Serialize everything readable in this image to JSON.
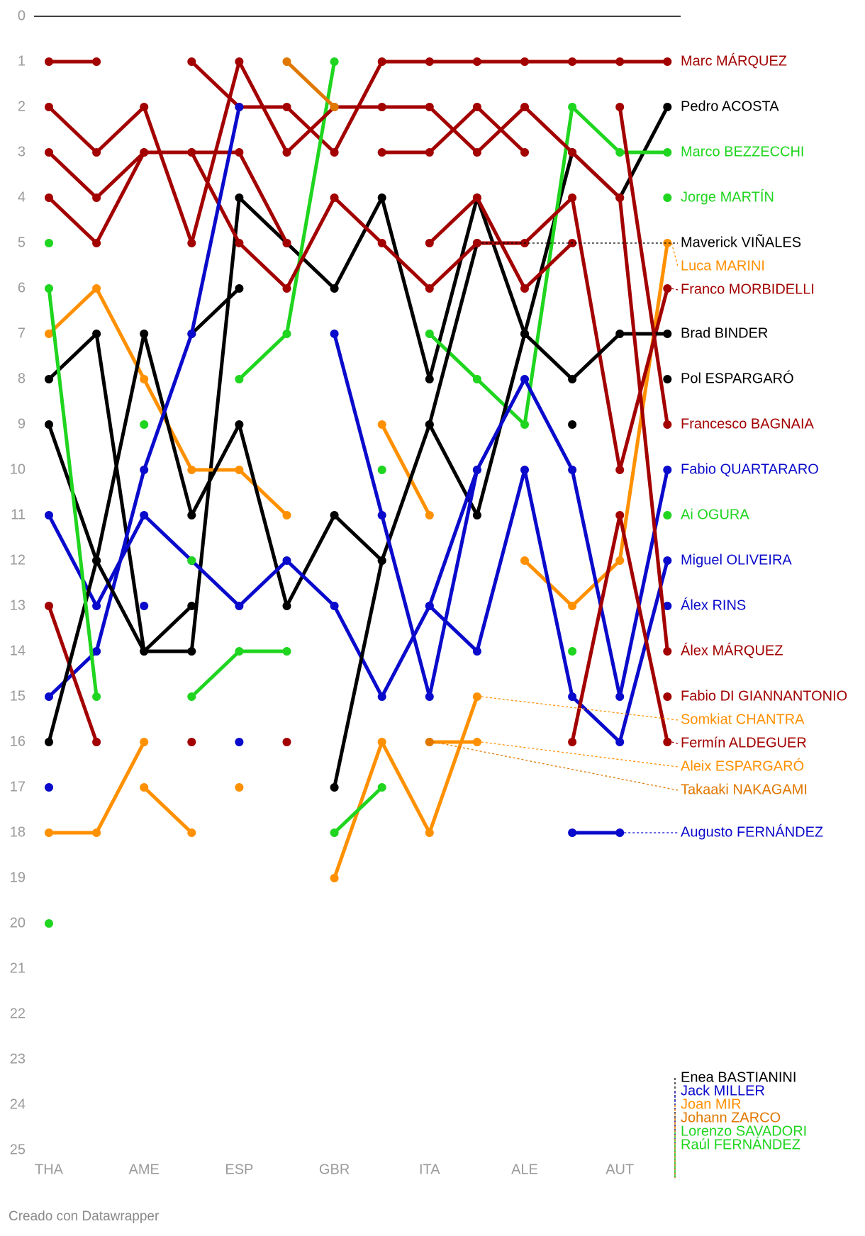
{
  "chart_data": {
    "type": "line",
    "categories": [
      "THA",
      null,
      "AME",
      null,
      "ESP",
      null,
      "GBR",
      null,
      "ITA",
      null,
      "ALE",
      null,
      "AUT",
      null
    ],
    "ylim": [
      0,
      25
    ],
    "yticks": [
      0,
      1,
      2,
      3,
      4,
      5,
      6,
      7,
      8,
      9,
      10,
      11,
      12,
      13,
      14,
      15,
      16,
      17,
      18,
      19,
      20,
      21,
      22,
      23,
      24,
      25
    ],
    "y_inverted": true,
    "footer": "Creado con Datawrapper",
    "series": [
      {
        "name": "Marc MÁRQUEZ",
        "color": "#a30000",
        "values": [
          1,
          1,
          null,
          1,
          2,
          2,
          3,
          1,
          1,
          1,
          1,
          1,
          1,
          1
        ]
      },
      {
        "name": "Pedro ACOSTA",
        "color": "#000000",
        "values": [
          8,
          7,
          14,
          14,
          4,
          5,
          6,
          4,
          8,
          4,
          7,
          3,
          4,
          2
        ]
      },
      {
        "name": "Marco BEZZECCHI",
        "color": "#1fd51f",
        "values": [
          null,
          null,
          9,
          null,
          8,
          7,
          1,
          null,
          7,
          8,
          9,
          2,
          3,
          3
        ]
      },
      {
        "name": "Jorge MARTÍN",
        "color": "#1fd51f",
        "values": [
          null,
          null,
          null,
          null,
          null,
          null,
          null,
          null,
          null,
          null,
          null,
          14,
          null,
          4
        ]
      },
      {
        "name": "Maverick VIÑALES",
        "color": "#000000",
        "values": [
          null,
          null,
          null,
          7,
          6,
          null,
          null,
          null,
          9,
          5,
          null,
          null,
          null,
          null
        ]
      },
      {
        "name": "Luca MARINI",
        "color": "#ff9000",
        "values": [
          7,
          6,
          8,
          10,
          10,
          11,
          null,
          9,
          11,
          null,
          12,
          13,
          12,
          5
        ]
      },
      {
        "name": "Franco MORBIDELLI",
        "color": "#a30000",
        "values": [
          4,
          5,
          3,
          3,
          5,
          6,
          4,
          5,
          6,
          5,
          5,
          4,
          10,
          6
        ]
      },
      {
        "name": "Brad BINDER",
        "color": "#000000",
        "values": [
          9,
          12,
          7,
          11,
          9,
          13,
          11,
          12,
          9,
          11,
          7,
          8,
          7,
          7
        ]
      },
      {
        "name": "Pol ESPARGARÓ",
        "color": "#000000",
        "values": [
          null,
          null,
          null,
          null,
          null,
          null,
          null,
          null,
          null,
          null,
          null,
          9,
          null,
          8
        ]
      },
      {
        "name": "Francesco BAGNAIA",
        "color": "#a30000",
        "values": [
          3,
          4,
          3,
          3,
          3,
          5,
          null,
          3,
          3,
          2,
          3,
          null,
          2,
          9
        ]
      },
      {
        "name": "Fabio QUARTARARO",
        "color": "#0a0acc",
        "values": [
          15,
          14,
          10,
          7,
          2,
          null,
          7,
          11,
          15,
          10,
          8,
          10,
          15,
          10
        ]
      },
      {
        "name": "Ai OGURA",
        "color": "#1fd51f",
        "values": [
          5,
          null,
          null,
          15,
          14,
          14,
          null,
          10,
          null,
          null,
          null,
          null,
          null,
          11
        ]
      },
      {
        "name": "Miguel OLIVEIRA",
        "color": "#0a0acc",
        "values": [
          null,
          null,
          null,
          null,
          null,
          null,
          null,
          null,
          13,
          14,
          10,
          15,
          16,
          12
        ]
      },
      {
        "name": "Álex RINS",
        "color": "#0a0acc",
        "values": [
          11,
          13,
          11,
          12,
          13,
          12,
          13,
          15,
          13,
          10,
          null,
          null,
          null,
          13
        ]
      },
      {
        "name": "Álex MÁRQUEZ",
        "color": "#a30000",
        "values": [
          2,
          3,
          2,
          5,
          1,
          3,
          2,
          2,
          2,
          3,
          2,
          3,
          4,
          14
        ]
      },
      {
        "name": "Fabio DI GIANNANTONIO",
        "color": "#a30000",
        "values": [
          null,
          null,
          null,
          null,
          null,
          null,
          null,
          null,
          5,
          4,
          6,
          5,
          null,
          15
        ]
      },
      {
        "name": "Somkiat CHANTRA",
        "color": "#ff9000",
        "values": [
          18,
          18,
          16,
          null,
          17,
          null,
          19,
          16,
          18,
          15,
          null,
          null,
          null,
          null
        ]
      },
      {
        "name": "Fermín ALDEGUER",
        "color": "#a30000",
        "values": [
          13,
          16,
          null,
          16,
          null,
          16,
          null,
          null,
          null,
          null,
          null,
          16,
          11,
          16
        ]
      },
      {
        "name": "Aleix ESPARGARÓ",
        "color": "#ff9000",
        "values": [
          null,
          null,
          null,
          null,
          null,
          null,
          null,
          null,
          16,
          16,
          null,
          null,
          null,
          null
        ]
      },
      {
        "name": "Takaaki NAKAGAMI",
        "color": "#e07800",
        "values": [
          null,
          null,
          null,
          null,
          null,
          null,
          null,
          null,
          16,
          null,
          null,
          null,
          null,
          null
        ]
      },
      {
        "name": "Augusto FERNÁNDEZ",
        "color": "#0a0acc",
        "values": [
          null,
          null,
          null,
          null,
          null,
          null,
          null,
          null,
          null,
          null,
          null,
          18,
          18,
          null
        ]
      },
      {
        "name": "Enea BASTIANINI",
        "color": "#000000",
        "values": [
          16,
          12,
          14,
          13,
          null,
          null,
          17,
          12,
          null,
          null,
          null,
          null,
          null,
          null
        ]
      },
      {
        "name": "Jack MILLER",
        "color": "#0a0acc",
        "values": [
          17,
          null,
          13,
          null,
          16,
          null,
          null,
          null,
          null,
          null,
          null,
          null,
          null,
          null
        ]
      },
      {
        "name": "Joan MIR",
        "color": "#ff9000",
        "values": [
          null,
          null,
          17,
          18,
          null,
          null,
          null,
          null,
          null,
          null,
          null,
          null,
          null,
          null
        ]
      },
      {
        "name": "Johann ZARCO",
        "color": "#e07800",
        "values": [
          null,
          null,
          null,
          null,
          null,
          1,
          2,
          null,
          null,
          null,
          null,
          null,
          null,
          null
        ]
      },
      {
        "name": "Lorenzo SAVADORI",
        "color": "#1fd51f",
        "values": [
          20,
          null,
          null,
          null,
          null,
          null,
          null,
          null,
          null,
          null,
          null,
          null,
          null,
          null
        ]
      },
      {
        "name": "Raúl FERNÁNDEZ",
        "color": "#1fd51f",
        "values": [
          6,
          15,
          null,
          12,
          null,
          null,
          18,
          17,
          null,
          null,
          null,
          null,
          null,
          null
        ]
      }
    ]
  }
}
